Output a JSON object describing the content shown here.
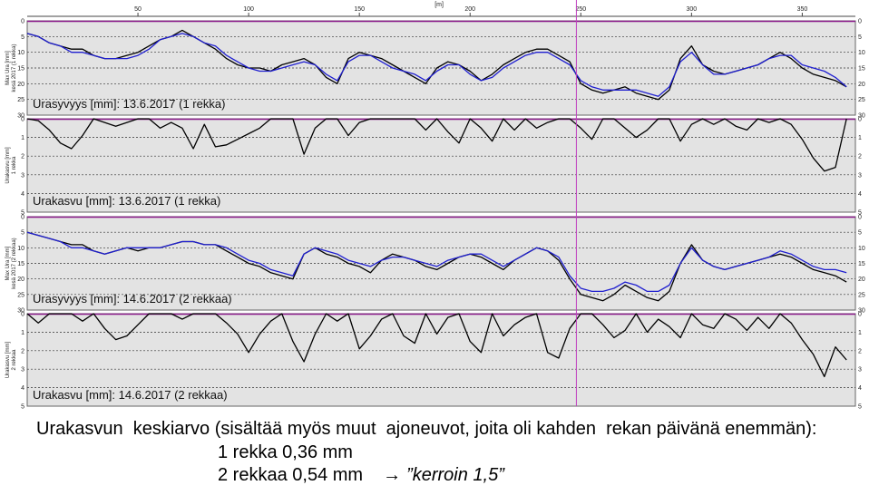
{
  "chart_data": {
    "type": "line",
    "x_axis": {
      "label": "[m]",
      "range": [
        0,
        374
      ],
      "ticks": [
        50,
        100,
        150,
        200,
        250,
        300,
        350
      ],
      "marker_at": 248
    },
    "panels": [
      {
        "kind": "depth",
        "label": "Urasyvyys  [mm]:  13.6.2017 (1 rekka)",
        "ylabel": "Max Ura [mm]",
        "ylabel2": "kesä 2017 (1 rekka)",
        "yticks": [
          0,
          5,
          10,
          15,
          20,
          25,
          30
        ],
        "ylim": [
          0,
          30
        ],
        "inverted": true,
        "series": [
          {
            "color": "#000000",
            "x": [
              0,
              5,
              10,
              15,
              20,
              25,
              30,
              35,
              40,
              45,
              50,
              55,
              60,
              65,
              70,
              75,
              80,
              85,
              90,
              95,
              100,
              105,
              110,
              115,
              120,
              125,
              130,
              135,
              140,
              145,
              150,
              155,
              160,
              165,
              170,
              175,
              180,
              185,
              190,
              195,
              200,
              205,
              210,
              215,
              220,
              225,
              230,
              235,
              240,
              245,
              250,
              255,
              260,
              265,
              270,
              275,
              280,
              285,
              290,
              295,
              300,
              305,
              310,
              315,
              320,
              325,
              330,
              335,
              340,
              345,
              350,
              355,
              360,
              365,
              370
            ],
            "y": [
              4,
              5,
              7,
              8,
              9,
              9,
              11,
              12,
              12,
              11,
              10,
              8,
              6,
              5,
              3,
              5,
              7,
              9,
              12,
              14,
              15,
              15,
              16,
              14,
              13,
              12,
              14,
              18,
              20,
              12,
              10,
              11,
              12,
              14,
              16,
              18,
              20,
              15,
              13,
              14,
              16,
              19,
              17,
              14,
              12,
              10,
              9,
              9,
              11,
              13,
              20,
              22,
              23,
              22,
              21,
              23,
              24,
              25,
              22,
              12,
              8,
              14,
              16,
              17,
              16,
              15,
              14,
              12,
              10,
              12,
              15,
              17,
              18,
              19,
              21
            ]
          },
          {
            "color": "#1f1fd0",
            "x": [
              0,
              5,
              10,
              15,
              20,
              25,
              30,
              35,
              40,
              45,
              50,
              55,
              60,
              65,
              70,
              75,
              80,
              85,
              90,
              95,
              100,
              105,
              110,
              115,
              120,
              125,
              130,
              135,
              140,
              145,
              150,
              155,
              160,
              165,
              170,
              175,
              180,
              185,
              190,
              195,
              200,
              205,
              210,
              215,
              220,
              225,
              230,
              235,
              240,
              245,
              250,
              255,
              260,
              265,
              270,
              275,
              280,
              285,
              290,
              295,
              300,
              305,
              310,
              315,
              320,
              325,
              330,
              335,
              340,
              345,
              350,
              355,
              360,
              365,
              370
            ],
            "y": [
              4,
              5,
              7,
              8,
              10,
              10,
              11,
              12,
              12,
              12,
              11,
              9,
              6,
              5,
              4,
              5,
              7,
              8,
              11,
              13,
              15,
              16,
              16,
              15,
              14,
              13,
              14,
              17,
              19,
              13,
              11,
              11,
              13,
              15,
              16,
              17,
              19,
              16,
              14,
              14,
              17,
              19,
              18,
              15,
              13,
              11,
              10,
              10,
              12,
              14,
              19,
              21,
              22,
              22,
              22,
              22,
              23,
              24,
              21,
              13,
              10,
              14,
              17,
              17,
              16,
              15,
              14,
              12,
              11,
              11,
              14,
              15,
              16,
              18,
              21
            ]
          }
        ]
      },
      {
        "kind": "growth",
        "label": "Urakasvu  [mm]:  13.6.2017 (1 rekka)",
        "ylabel": "Urakasvu [mm]",
        "ylabel2": "1 rekka",
        "yticks": [
          0,
          1,
          2,
          3,
          4,
          5
        ],
        "ylim": [
          0,
          5
        ],
        "inverted": true,
        "series": [
          {
            "color": "#000000",
            "x": [
              0,
              5,
              10,
              15,
              20,
              25,
              30,
              35,
              40,
              45,
              50,
              55,
              60,
              65,
              70,
              75,
              80,
              85,
              90,
              95,
              100,
              105,
              110,
              115,
              120,
              125,
              130,
              135,
              140,
              145,
              150,
              155,
              160,
              165,
              170,
              175,
              180,
              185,
              190,
              195,
              200,
              205,
              210,
              215,
              220,
              225,
              230,
              235,
              240,
              245,
              250,
              255,
              260,
              265,
              270,
              275,
              280,
              285,
              290,
              295,
              300,
              305,
              310,
              315,
              320,
              325,
              330,
              335,
              340,
              345,
              350,
              355,
              360,
              365,
              370
            ],
            "y": [
              0,
              0.1,
              0.6,
              1.3,
              1.6,
              0.9,
              0,
              0.2,
              0.4,
              0.2,
              0,
              0,
              0.5,
              0.2,
              0.5,
              1.6,
              0.3,
              1.5,
              1.4,
              1.1,
              0.8,
              0.5,
              0,
              0,
              0,
              1.9,
              0.5,
              0,
              0,
              0.9,
              0.2,
              0,
              0,
              0,
              0,
              0,
              0.6,
              0,
              0.7,
              1.3,
              0,
              0.5,
              1.2,
              0,
              0.6,
              0,
              0.5,
              0.2,
              0,
              0,
              0.5,
              1.1,
              0,
              0,
              0.5,
              1.0,
              0.6,
              0,
              0,
              1.2,
              0.3,
              0,
              0.3,
              0,
              0.4,
              0.6,
              0,
              0.2,
              0,
              0.3,
              1.1,
              2.1,
              2.8,
              2.6,
              0
            ]
          }
        ]
      },
      {
        "kind": "depth",
        "label": "Urasyvyys  [mm]:  14.6.2017 (2 rekkaa)",
        "ylabel": "Max Ura [mm]",
        "ylabel2": "kesä 2017 (2 rekkaa)",
        "yticks": [
          0,
          5,
          10,
          15,
          20,
          25,
          30
        ],
        "ylim": [
          0,
          30
        ],
        "inverted": true,
        "series": [
          {
            "color": "#000000",
            "x": [
              0,
              5,
              10,
              15,
              20,
              25,
              30,
              35,
              40,
              45,
              50,
              55,
              60,
              65,
              70,
              75,
              80,
              85,
              90,
              95,
              100,
              105,
              110,
              115,
              120,
              125,
              130,
              135,
              140,
              145,
              150,
              155,
              160,
              165,
              170,
              175,
              180,
              185,
              190,
              195,
              200,
              205,
              210,
              215,
              220,
              225,
              230,
              235,
              240,
              245,
              250,
              255,
              260,
              265,
              270,
              275,
              280,
              285,
              290,
              295,
              300,
              305,
              310,
              315,
              320,
              325,
              330,
              335,
              340,
              345,
              350,
              355,
              360,
              365,
              370
            ],
            "y": [
              5,
              6,
              7,
              8,
              9,
              9,
              11,
              12,
              11,
              10,
              11,
              10,
              10,
              9,
              8,
              8,
              9,
              9,
              11,
              13,
              15,
              16,
              18,
              19,
              20,
              12,
              10,
              12,
              13,
              15,
              16,
              18,
              14,
              12,
              13,
              14,
              16,
              17,
              15,
              13,
              12,
              13,
              15,
              17,
              14,
              12,
              10,
              11,
              14,
              20,
              25,
              26,
              27,
              25,
              22,
              24,
              26,
              27,
              24,
              15,
              9,
              14,
              16,
              17,
              16,
              15,
              14,
              13,
              12,
              13,
              15,
              17,
              18,
              19,
              21
            ]
          },
          {
            "color": "#1f1fd0",
            "x": [
              0,
              5,
              10,
              15,
              20,
              25,
              30,
              35,
              40,
              45,
              50,
              55,
              60,
              65,
              70,
              75,
              80,
              85,
              90,
              95,
              100,
              105,
              110,
              115,
              120,
              125,
              130,
              135,
              140,
              145,
              150,
              155,
              160,
              165,
              170,
              175,
              180,
              185,
              190,
              195,
              200,
              205,
              210,
              215,
              220,
              225,
              230,
              235,
              240,
              245,
              250,
              255,
              260,
              265,
              270,
              275,
              280,
              285,
              290,
              295,
              300,
              305,
              310,
              315,
              320,
              325,
              330,
              335,
              340,
              345,
              350,
              355,
              360,
              365,
              370
            ],
            "y": [
              5,
              6,
              7,
              8,
              10,
              10,
              11,
              12,
              11,
              10,
              10,
              10,
              10,
              9,
              8,
              8,
              9,
              9,
              10,
              12,
              14,
              15,
              17,
              18,
              19,
              12,
              10,
              11,
              12,
              14,
              15,
              16,
              14,
              13,
              13,
              14,
              15,
              16,
              14,
              13,
              12,
              12,
              14,
              16,
              14,
              12,
              10,
              11,
              13,
              19,
              23,
              24,
              24,
              23,
              21,
              22,
              24,
              24,
              22,
              15,
              10,
              14,
              16,
              17,
              16,
              15,
              14,
              13,
              11,
              12,
              14,
              16,
              17,
              17,
              18
            ]
          }
        ]
      },
      {
        "kind": "growth",
        "label": "Urakasvu  [mm]:  14.6.2017 (2 rekkaa)",
        "ylabel": "Urakasvu [mm]",
        "ylabel2": "2 rekkaa",
        "yticks": [
          0,
          1,
          2,
          3,
          4,
          5
        ],
        "ylim": [
          0,
          5
        ],
        "inverted": true,
        "series": [
          {
            "color": "#000000",
            "x": [
              0,
              5,
              10,
              15,
              20,
              25,
              30,
              35,
              40,
              45,
              50,
              55,
              60,
              65,
              70,
              75,
              80,
              85,
              90,
              95,
              100,
              105,
              110,
              115,
              120,
              125,
              130,
              135,
              140,
              145,
              150,
              155,
              160,
              165,
              170,
              175,
              180,
              185,
              190,
              195,
              200,
              205,
              210,
              215,
              220,
              225,
              230,
              235,
              240,
              245,
              250,
              255,
              260,
              265,
              270,
              275,
              280,
              285,
              290,
              295,
              300,
              305,
              310,
              315,
              320,
              325,
              330,
              335,
              340,
              345,
              350,
              355,
              360,
              365,
              370
            ],
            "y": [
              0,
              0.5,
              0,
              0,
              0,
              0.4,
              0,
              0.8,
              1.4,
              1.2,
              0.6,
              0,
              0,
              0,
              0.3,
              0,
              0,
              0,
              0.5,
              1.1,
              2.1,
              1.1,
              0.4,
              0,
              1.5,
              2.6,
              1.1,
              0,
              0.4,
              0,
              1.9,
              1.2,
              0.3,
              0,
              1.2,
              1.6,
              0,
              1.1,
              0.2,
              0,
              1.5,
              2.1,
              0,
              1.2,
              0.6,
              0.2,
              0,
              2.1,
              2.4,
              0.8,
              0,
              0,
              0.6,
              1.3,
              0.9,
              0,
              1.0,
              0.3,
              0.7,
              1.3,
              0,
              0.6,
              0.8,
              0,
              0.3,
              0.9,
              0.2,
              0.8,
              0,
              0.5,
              1.4,
              2.2,
              3.4,
              1.8,
              2.5
            ]
          }
        ]
      }
    ]
  },
  "caption": {
    "line1": "Urakasvun  keskiarvo (sisältää myös muut  ajoneuvot, joita oli kahden  rekan päivänä enemmän):",
    "line2": "1 rekka 0,36 mm",
    "line3_value": "2 rekkaa 0,54 mm",
    "line3_factor": "”kerroin 1,5”"
  },
  "colors": {
    "panel_bg": "#e3e3e3",
    "panel_border": "#8a1a8a",
    "marker": "#c040c0",
    "series_primary": "#000000",
    "series_secondary": "#1f1fd0"
  },
  "icons": {
    "arrow": "right-arrow-icon",
    "arrow_glyph": "→"
  }
}
